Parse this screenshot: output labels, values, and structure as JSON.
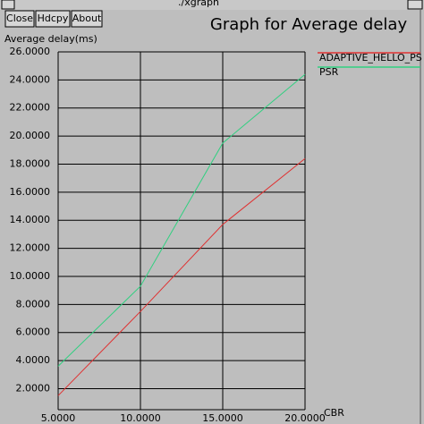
{
  "window": {
    "title": "./xgraph",
    "buttons": [
      "Close",
      "Hdcpy",
      "About"
    ]
  },
  "chart_data": {
    "type": "line",
    "title": "Graph for Average delay",
    "y_label": "Average delay(ms)",
    "x_label": "CBR",
    "x": [
      5,
      10,
      15,
      20
    ],
    "series": [
      {
        "name": "ADAPTIVE_HELLO_PS",
        "color": "#e03030",
        "values": [
          1.5,
          7.5,
          13.7,
          18.4
        ]
      },
      {
        "name": "PSR",
        "color": "#30d080",
        "values": [
          3.6,
          9.3,
          19.5,
          24.4
        ]
      }
    ],
    "xlim": [
      5,
      20
    ],
    "xticks": [
      {
        "value": 5,
        "label": "5.0000"
      },
      {
        "value": 10,
        "label": "10.0000"
      },
      {
        "value": 15,
        "label": "15.0000"
      },
      {
        "value": 20,
        "label": "20.0000"
      }
    ],
    "ylim": [
      0.5,
      26
    ],
    "yticks": [
      {
        "value": 2,
        "label": "2.0000"
      },
      {
        "value": 4,
        "label": "4.0000"
      },
      {
        "value": 6,
        "label": "6.0000"
      },
      {
        "value": 8,
        "label": "8.0000"
      },
      {
        "value": 10,
        "label": "10.0000"
      },
      {
        "value": 12,
        "label": "12.0000"
      },
      {
        "value": 14,
        "label": "14.0000"
      },
      {
        "value": 16,
        "label": "16.0000"
      },
      {
        "value": 18,
        "label": "18.0000"
      },
      {
        "value": 20,
        "label": "20.0000"
      },
      {
        "value": 22,
        "label": "22.0000"
      },
      {
        "value": 24,
        "label": "24.0000"
      },
      {
        "value": 26,
        "label": "26.0000"
      }
    ],
    "grid": true
  }
}
